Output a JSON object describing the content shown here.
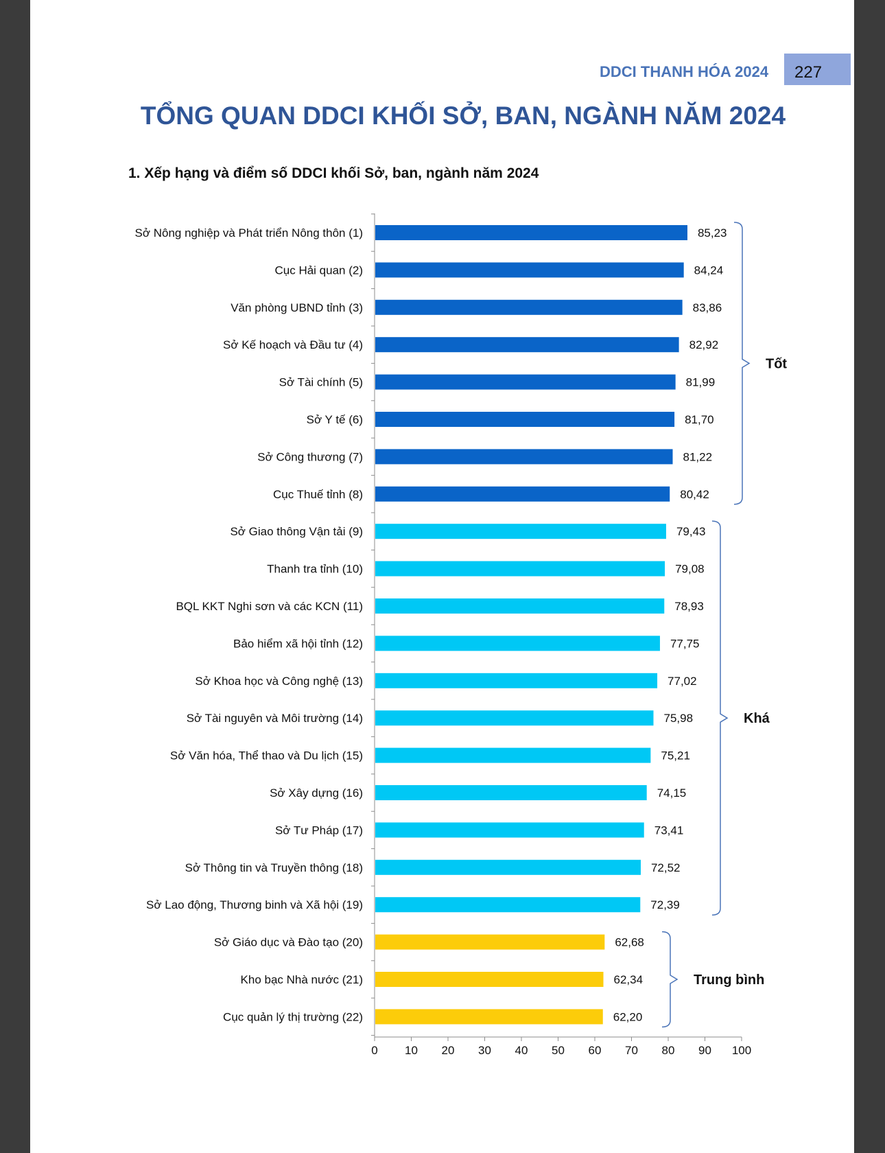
{
  "header": {
    "title": "DDCI THANH HÓA 2024",
    "page_number": "227"
  },
  "main_title": "TỔNG QUAN DDCI KHỐI SỞ, BAN, NGÀNH NĂM 2024",
  "section_title": "1. Xếp hạng và điểm số DDCI khối Sở, ban, ngành năm 2024",
  "colors": {
    "good": "#0a64c8",
    "fair": "#00c8f5",
    "average": "#fccc0a",
    "bracket": "#4a74b8"
  },
  "chart_data": {
    "type": "bar",
    "orientation": "horizontal",
    "categories": [
      "Sở Nông nghiệp và Phát triển Nông thôn (1)",
      "Cục Hải quan (2)",
      "Văn phòng UBND tỉnh (3)",
      "Sở Kế hoạch và Đầu tư (4)",
      "Sở Tài chính (5)",
      "Sở Y tế (6)",
      "Sở Công thương (7)",
      "Cục Thuế tỉnh (8)",
      "Sở Giao thông Vận tải (9)",
      "Thanh tra tỉnh (10)",
      "BQL KKT Nghi sơn và các KCN (11)",
      "Bảo hiểm xã hội tỉnh (12)",
      "Sở Khoa học và Công nghệ (13)",
      "Sở Tài nguyên và Môi trường (14)",
      "Sở Văn hóa, Thể thao và Du lịch (15)",
      "Sở Xây dựng (16)",
      "Sở Tư Pháp (17)",
      "Sở Thông tin và Truyền thông (18)",
      "Sở Lao động, Thương binh và Xã hội (19)",
      "Sở Giáo dục và Đào tạo (20)",
      "Kho bạc Nhà nước (21)",
      "Cục quản lý thị trường (22)"
    ],
    "values": [
      85.23,
      84.24,
      83.86,
      82.92,
      81.99,
      81.7,
      81.22,
      80.42,
      79.43,
      79.08,
      78.93,
      77.75,
      77.02,
      75.98,
      75.21,
      74.15,
      73.41,
      72.52,
      72.39,
      62.68,
      62.34,
      62.2
    ],
    "value_labels": [
      "85,23",
      "84,24",
      "83,86",
      "82,92",
      "81,99",
      "81,70",
      "81,22",
      "80,42",
      "79,43",
      "79,08",
      "78,93",
      "77,75",
      "77,02",
      "75,98",
      "75,21",
      "74,15",
      "73,41",
      "72,52",
      "72,39",
      "62,68",
      "62,34",
      "62,20"
    ],
    "groups": [
      {
        "label": "Tốt",
        "from": 0,
        "to": 7,
        "color": "#0a64c8"
      },
      {
        "label": "Khá",
        "from": 8,
        "to": 18,
        "color": "#00c8f5"
      },
      {
        "label": "Trung bình",
        "from": 19,
        "to": 21,
        "color": "#fccc0a"
      }
    ],
    "xlim": [
      0,
      100
    ],
    "xticks": [
      "0",
      "10",
      "20",
      "30",
      "40",
      "50",
      "60",
      "70",
      "80",
      "90",
      "100"
    ],
    "grid": false
  }
}
